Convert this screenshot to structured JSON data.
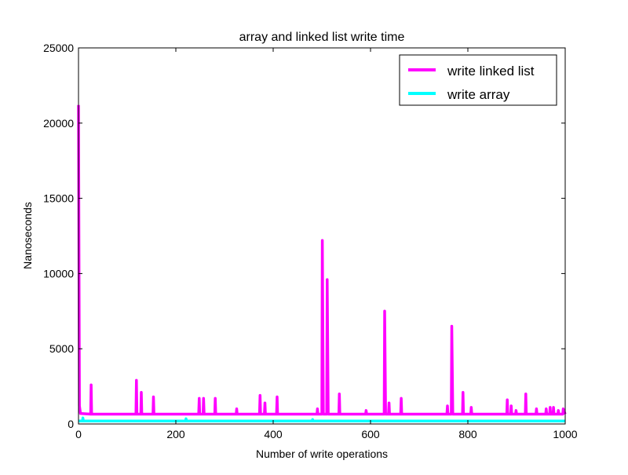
{
  "chart_data": {
    "type": "line",
    "title": "array and linked list write time",
    "xlabel": "Number of write operations",
    "ylabel": "Nanoseconds",
    "xlim": [
      0,
      1000
    ],
    "ylim": [
      0,
      25000
    ],
    "xticks": [
      0,
      200,
      400,
      600,
      800,
      1000
    ],
    "yticks": [
      0,
      5000,
      10000,
      15000,
      20000,
      25000
    ],
    "grid": false,
    "legend_position": "top-right",
    "series": [
      {
        "name": "write linked list",
        "color": "#ff00ff",
        "baseline": 600,
        "points": [
          [
            0,
            21200
          ],
          [
            2,
            1200
          ],
          [
            4,
            700
          ],
          [
            25,
            650
          ],
          [
            26,
            2600
          ],
          [
            27,
            650
          ],
          [
            118,
            650
          ],
          [
            119,
            2900
          ],
          [
            120,
            650
          ],
          [
            128,
            650
          ],
          [
            129,
            2100
          ],
          [
            130,
            650
          ],
          [
            153,
            650
          ],
          [
            154,
            1800
          ],
          [
            155,
            650
          ],
          [
            247,
            650
          ],
          [
            248,
            1700
          ],
          [
            249,
            650
          ],
          [
            256,
            650
          ],
          [
            257,
            1700
          ],
          [
            258,
            650
          ],
          [
            280,
            650
          ],
          [
            281,
            1700
          ],
          [
            282,
            650
          ],
          [
            324,
            650
          ],
          [
            325,
            1000
          ],
          [
            326,
            650
          ],
          [
            372,
            650
          ],
          [
            373,
            1900
          ],
          [
            374,
            650
          ],
          [
            382,
            650
          ],
          [
            383,
            1400
          ],
          [
            384,
            650
          ],
          [
            407,
            650
          ],
          [
            408,
            1800
          ],
          [
            409,
            650
          ],
          [
            490,
            650
          ],
          [
            491,
            1000
          ],
          [
            492,
            650
          ],
          [
            500,
            650
          ],
          [
            501,
            12200
          ],
          [
            503,
            650
          ],
          [
            510,
            650
          ],
          [
            511,
            9600
          ],
          [
            513,
            650
          ],
          [
            535,
            650
          ],
          [
            536,
            2000
          ],
          [
            537,
            650
          ],
          [
            590,
            650
          ],
          [
            591,
            900
          ],
          [
            592,
            650
          ],
          [
            628,
            650
          ],
          [
            629,
            7500
          ],
          [
            631,
            650
          ],
          [
            637,
            650
          ],
          [
            638,
            1400
          ],
          [
            639,
            650
          ],
          [
            662,
            650
          ],
          [
            663,
            1700
          ],
          [
            664,
            650
          ],
          [
            757,
            650
          ],
          [
            758,
            1200
          ],
          [
            759,
            650
          ],
          [
            766,
            650
          ],
          [
            767,
            6500
          ],
          [
            769,
            650
          ],
          [
            789,
            650
          ],
          [
            790,
            2100
          ],
          [
            791,
            650
          ],
          [
            806,
            650
          ],
          [
            807,
            1100
          ],
          [
            808,
            650
          ],
          [
            880,
            650
          ],
          [
            881,
            1600
          ],
          [
            882,
            650
          ],
          [
            888,
            650
          ],
          [
            889,
            1200
          ],
          [
            890,
            650
          ],
          [
            898,
            650
          ],
          [
            899,
            900
          ],
          [
            900,
            650
          ],
          [
            918,
            650
          ],
          [
            919,
            2000
          ],
          [
            920,
            650
          ],
          [
            940,
            650
          ],
          [
            941,
            1000
          ],
          [
            942,
            650
          ],
          [
            960,
            650
          ],
          [
            961,
            1000
          ],
          [
            962,
            650
          ],
          [
            968,
            650
          ],
          [
            969,
            1100
          ],
          [
            970,
            650
          ],
          [
            975,
            650
          ],
          [
            976,
            1100
          ],
          [
            977,
            650
          ],
          [
            985,
            650
          ],
          [
            986,
            900
          ],
          [
            987,
            650
          ],
          [
            995,
            650
          ],
          [
            996,
            1000
          ],
          [
            1000,
            650
          ]
        ]
      },
      {
        "name": "write array",
        "color": "#00ffff",
        "baseline": 200,
        "points": [
          [
            0,
            200
          ],
          [
            8,
            200
          ],
          [
            9,
            400
          ],
          [
            10,
            200
          ],
          [
            220,
            200
          ],
          [
            221,
            350
          ],
          [
            222,
            200
          ],
          [
            480,
            200
          ],
          [
            481,
            300
          ],
          [
            482,
            200
          ],
          [
            1000,
            200
          ]
        ]
      }
    ]
  }
}
